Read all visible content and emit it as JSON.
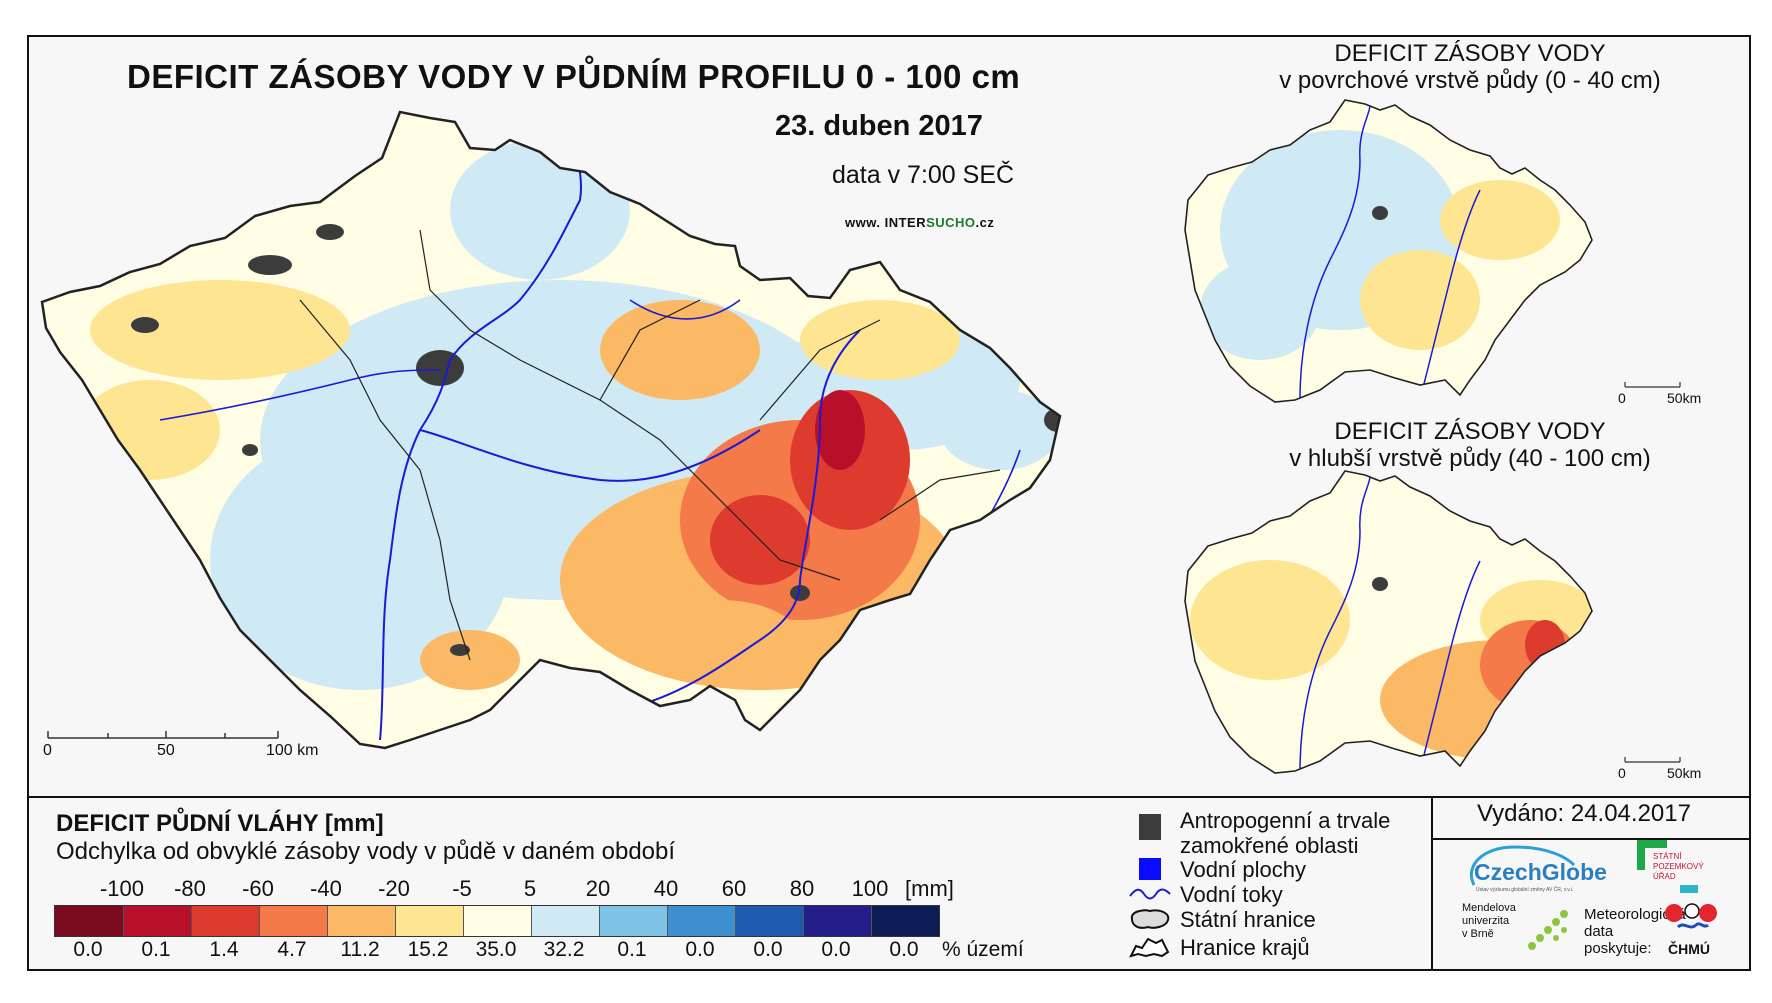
{
  "main_title": "DEFICIT ZÁSOBY VODY V PŮDNÍM PROFILU 0 - 100 cm",
  "date": "23. duben 2017",
  "data_time": "data v 7:00 SEČ",
  "website": {
    "prefix": "www. INTER",
    "highlight": "SUCHO",
    "suffix": ".cz"
  },
  "main_map": {
    "scale_ticks": [
      "0",
      "50",
      "100 km"
    ]
  },
  "inset_top": {
    "title_line1": "DEFICIT ZÁSOBY VODY",
    "title_line2": "v povrchové vrstvě půdy (0 - 40 cm)",
    "scale_ticks": [
      "0",
      "50km"
    ]
  },
  "inset_bottom": {
    "title_line1": "DEFICIT ZÁSOBY VODY",
    "title_line2": "v hlubší vrstvě půdy (40 - 100 cm)",
    "scale_ticks": [
      "0",
      "50km"
    ]
  },
  "legend": {
    "title": "DEFICIT PŮDNÍ VLÁHY [mm]",
    "subtitle": "Odchylka od obvyklé zásoby vody v půdě v daném období",
    "unit": "[mm]",
    "pct_unit": "% území",
    "breaks": [
      "-100",
      "-80",
      "-60",
      "-40",
      "-20",
      "-5",
      "5",
      "20",
      "40",
      "60",
      "80",
      "100"
    ],
    "classes": [
      {
        "color": "#7a0a1e",
        "pct": "0.0"
      },
      {
        "color": "#b8102a",
        "pct": "0.1"
      },
      {
        "color": "#de3b2f",
        "pct": "1.4"
      },
      {
        "color": "#f47a4a",
        "pct": "4.7"
      },
      {
        "color": "#fbb865",
        "pct": "11.2"
      },
      {
        "color": "#fde592",
        "pct": "15.2"
      },
      {
        "color": "#fffde4",
        "pct": "35.0"
      },
      {
        "color": "#cfeaf5",
        "pct": "32.2"
      },
      {
        "color": "#7fc4e6",
        "pct": "0.1"
      },
      {
        "color": "#3d8fd0",
        "pct": "0.0"
      },
      {
        "color": "#1c5bb0",
        "pct": "0.0"
      },
      {
        "color": "#241f88",
        "pct": "0.0"
      },
      {
        "color": "#0d1c54",
        "pct": "0.0"
      }
    ]
  },
  "symbols": {
    "urban": "Antropogenní a trvale zamokřené oblasti",
    "water_bodies": "Vodní plochy",
    "rivers": "Vodní toky",
    "state_border": "Státní hranice",
    "regions": "Hranice krajů"
  },
  "issued": "Vydáno: 24.04.2017",
  "logos": {
    "czechglobe": "CzechGlobe",
    "czechglobe_sub": "Ústav výzkumu globální změny AV ČR, v.v.i.",
    "spu": [
      "STÁTNÍ",
      "POZEMKOVÝ",
      "ÚŘAD"
    ],
    "mendel": [
      "Mendelova",
      "univerzita",
      "v Brně"
    ],
    "meteo": [
      "Meteorologická",
      "data",
      "poskytuje:"
    ],
    "chmu": "ČHMÚ"
  },
  "colors": {
    "river": "#1a1ad9",
    "urban": "#3c3c3c",
    "water": "#0a0aff",
    "border": "#111111"
  }
}
